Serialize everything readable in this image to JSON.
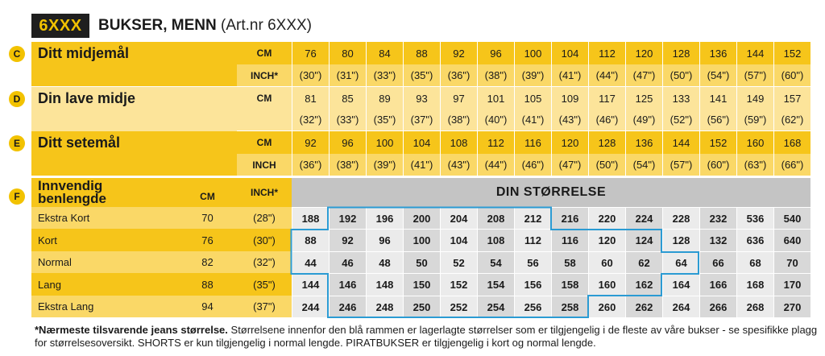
{
  "header": {
    "badge": "6XXX",
    "title_bold": "BUKSER, MENN",
    "title_rest": "(Art.nr 6XXX)"
  },
  "top_sections": [
    {
      "letter": "C",
      "label": "Ditt midjemål",
      "rows": [
        {
          "unit": "CM",
          "values": [
            "76",
            "80",
            "84",
            "88",
            "92",
            "96",
            "100",
            "104",
            "112",
            "120",
            "128",
            "136",
            "144",
            "152"
          ]
        },
        {
          "unit": "INCH*",
          "values": [
            "(30\")",
            "(31\")",
            "(33\")",
            "(35\")",
            "(36\")",
            "(38\")",
            "(39\")",
            "(41\")",
            "(44\")",
            "(47\")",
            "(50\")",
            "(54\")",
            "(57\")",
            "(60\")"
          ]
        }
      ]
    },
    {
      "letter": "D",
      "label": "Din lave midje",
      "rows": [
        {
          "unit": "CM",
          "values": [
            "81",
            "85",
            "89",
            "93",
            "97",
            "101",
            "105",
            "109",
            "117",
            "125",
            "133",
            "141",
            "149",
            "157"
          ]
        },
        {
          "unit": "",
          "values": [
            "(32\")",
            "(33\")",
            "(35\")",
            "(37\")",
            "(38\")",
            "(40\")",
            "(41\")",
            "(43\")",
            "(46\")",
            "(49\")",
            "(52\")",
            "(56\")",
            "(59\")",
            "(62\")"
          ]
        }
      ]
    },
    {
      "letter": "E",
      "label": "Ditt setemål",
      "rows": [
        {
          "unit": "CM",
          "values": [
            "92",
            "96",
            "100",
            "104",
            "108",
            "112",
            "116",
            "120",
            "128",
            "136",
            "144",
            "152",
            "160",
            "168"
          ]
        },
        {
          "unit": "INCH",
          "values": [
            "(36\")",
            "(38\")",
            "(39\")",
            "(41\")",
            "(43\")",
            "(44\")",
            "(46\")",
            "(47\")",
            "(50\")",
            "(54\")",
            "(57\")",
            "(60\")",
            "(63\")",
            "(66\")"
          ]
        }
      ]
    }
  ],
  "inseam": {
    "letter": "F",
    "label_line1": "Innvendig",
    "label_line2": "benlengde",
    "cm_header": "CM",
    "inch_header": "INCH*",
    "din_header": "DIN STØRRELSE",
    "rows": [
      {
        "name": "Ekstra Kort",
        "cm": "70",
        "inch": "(28\")",
        "sizes": [
          "188",
          "192",
          "196",
          "200",
          "204",
          "208",
          "212",
          "216",
          "220",
          "224",
          "228",
          "232",
          "536",
          "540"
        ]
      },
      {
        "name": "Kort",
        "cm": "76",
        "inch": "(30\")",
        "sizes": [
          "88",
          "92",
          "96",
          "100",
          "104",
          "108",
          "112",
          "116",
          "120",
          "124",
          "128",
          "132",
          "636",
          "640"
        ]
      },
      {
        "name": "Normal",
        "cm": "82",
        "inch": "(32\")",
        "sizes": [
          "44",
          "46",
          "48",
          "50",
          "52",
          "54",
          "56",
          "58",
          "60",
          "62",
          "64",
          "66",
          "68",
          "70"
        ]
      },
      {
        "name": "Lang",
        "cm": "88",
        "inch": "(35\")",
        "sizes": [
          "144",
          "146",
          "148",
          "150",
          "152",
          "154",
          "156",
          "158",
          "160",
          "162",
          "164",
          "166",
          "168",
          "170"
        ]
      },
      {
        "name": "Ekstra Lang",
        "cm": "94",
        "inch": "(37\")",
        "sizes": [
          "244",
          "246",
          "248",
          "250",
          "252",
          "254",
          "256",
          "258",
          "260",
          "262",
          "264",
          "266",
          "268",
          "270"
        ]
      }
    ]
  },
  "footnote": {
    "bold": "*Nærmeste tilsvarende jeans størrelse.",
    "text": " Størrelsene innenfor den blå rammen er lagerlagte størrelser som er tilgjengelig i de fleste av våre bukser - se spesifikke plagg for størrelsesoversikt. SHORTS er kun tilgjengelig i normal lengde. PIRATBUKSER er tilgjengelig i kort og normal lengde."
  },
  "colors": {
    "yellow_dark": "#f6c51a",
    "yellow_mid": "#fad867",
    "yellow_light": "#fce49a",
    "grey_dark": "#d8d8d8",
    "grey_light": "#ebebeb",
    "frame_blue": "#2b9bd3"
  }
}
